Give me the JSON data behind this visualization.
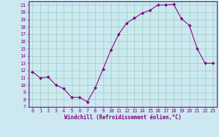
{
  "x": [
    0,
    1,
    2,
    3,
    4,
    5,
    6,
    7,
    8,
    9,
    10,
    11,
    12,
    13,
    14,
    15,
    16,
    17,
    18,
    19,
    20,
    21,
    22,
    23
  ],
  "y": [
    11.8,
    11.0,
    11.1,
    10.0,
    9.5,
    8.3,
    8.3,
    7.7,
    9.6,
    12.2,
    14.8,
    17.0,
    18.5,
    19.2,
    19.9,
    20.3,
    21.0,
    21.0,
    21.1,
    19.1,
    18.2,
    15.0,
    13.0,
    13.0
  ],
  "xlim": [
    -0.5,
    23.5
  ],
  "ylim": [
    7,
    21.5
  ],
  "yticks": [
    7,
    8,
    9,
    10,
    11,
    12,
    13,
    14,
    15,
    16,
    17,
    18,
    19,
    20,
    21
  ],
  "xticks": [
    0,
    1,
    2,
    3,
    4,
    5,
    6,
    7,
    8,
    9,
    10,
    11,
    12,
    13,
    14,
    15,
    16,
    17,
    18,
    19,
    20,
    21,
    22,
    23
  ],
  "xlabel": "Windchill (Refroidissement éolien,°C)",
  "line_color": "#800080",
  "marker": "D",
  "marker_size": 2,
  "bg_color": "#cce8f0",
  "grid_color": "#99ccbb",
  "label_fontsize": 5.5,
  "tick_fontsize": 5.0
}
